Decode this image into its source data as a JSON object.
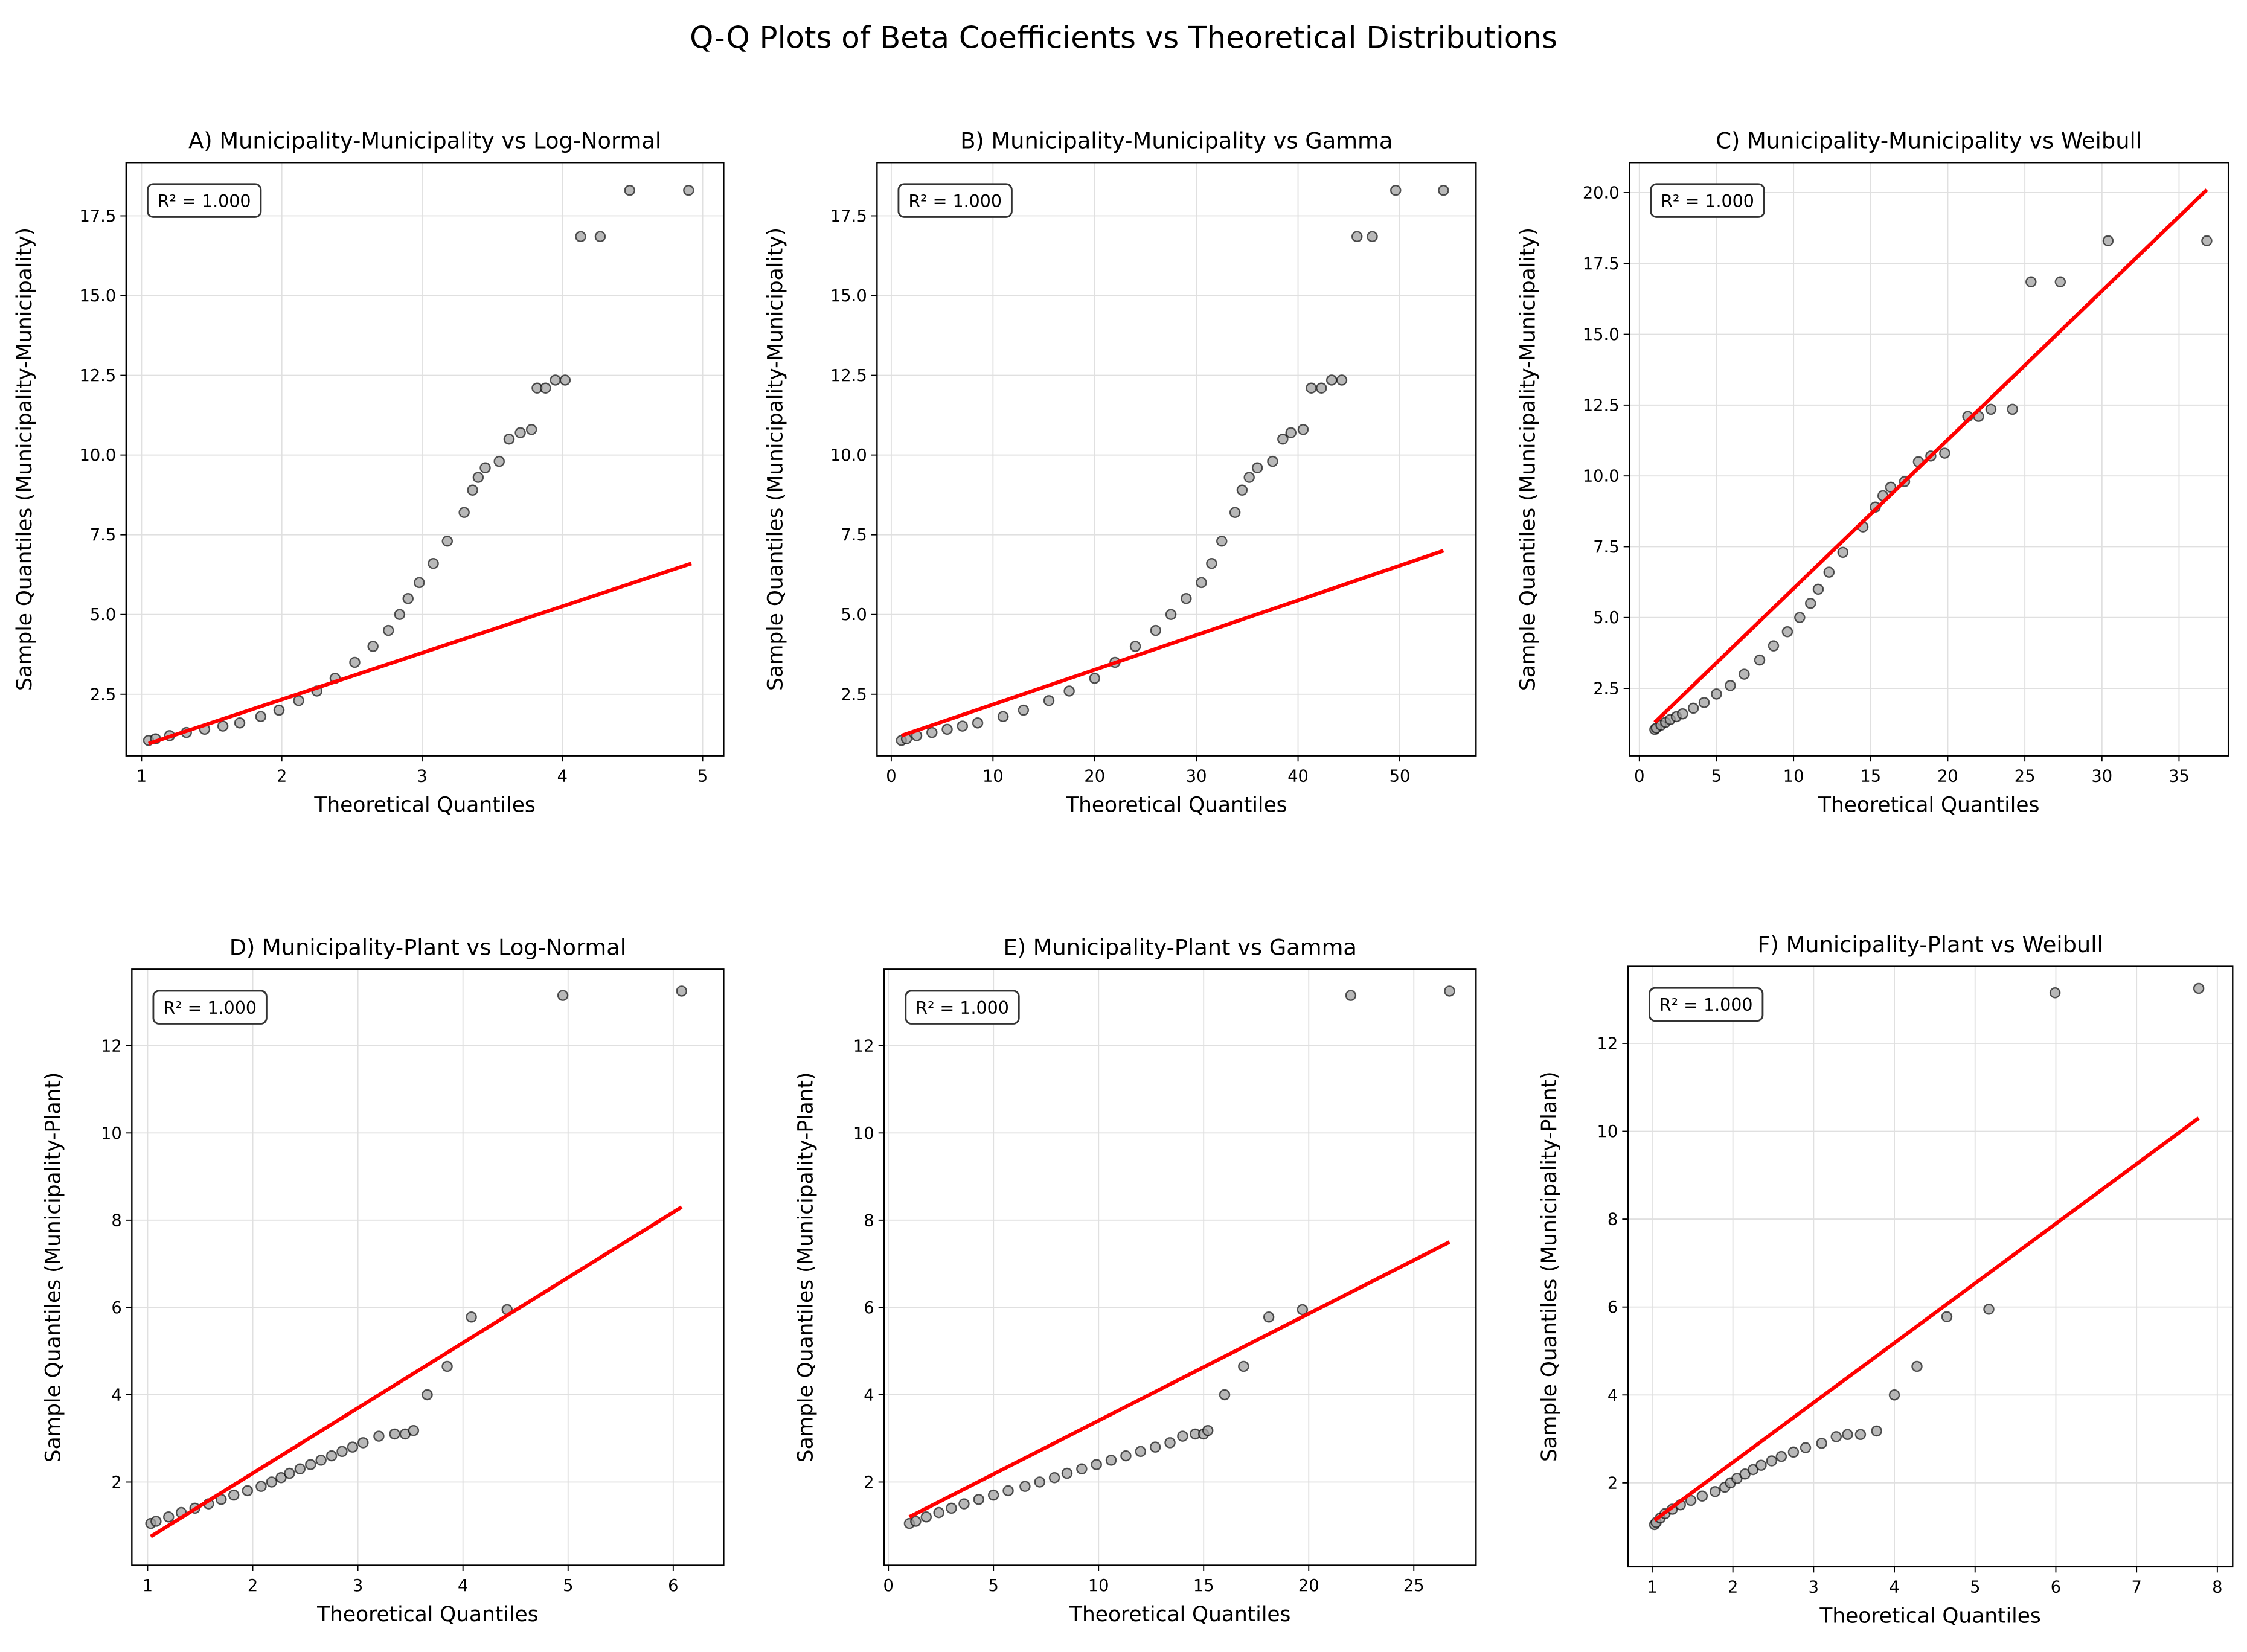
{
  "title": "Q-Q Plots of Beta Coefficients vs Theoretical Distributions",
  "colors": {
    "points_fill": "#a0a0a0",
    "points_edge": "#000000",
    "fit_line": "#ff0000",
    "grid": "#e0e0e0"
  },
  "chart_data": [
    {
      "type": "scatter",
      "title": "A) Municipality-Municipality vs Log-Normal",
      "xlabel": "Theoretical Quantiles",
      "ylabel": "Sample Quantiles (Municipality-Municipality)",
      "annotation": "R² = 1.000",
      "grid": true,
      "xlim": [
        0.89,
        5.15
      ],
      "ylim": [
        0.57,
        19.17
      ],
      "xticks": [
        1,
        2,
        3,
        4,
        5
      ],
      "yticks": [
        2.5,
        5.0,
        7.5,
        10.0,
        12.5,
        15.0,
        17.5
      ],
      "ytick_decimals": 1,
      "x": [
        1.05,
        1.1,
        1.2,
        1.32,
        1.45,
        1.58,
        1.7,
        1.85,
        1.98,
        2.12,
        2.25,
        2.38,
        2.52,
        2.65,
        2.76,
        2.84,
        2.9,
        2.98,
        3.08,
        3.18,
        3.3,
        3.36,
        3.4,
        3.45,
        3.55,
        3.62,
        3.7,
        3.78,
        3.82,
        3.88,
        3.95,
        4.02,
        4.13,
        4.27,
        4.48,
        4.9
      ],
      "y": [
        1.05,
        1.1,
        1.2,
        1.3,
        1.4,
        1.5,
        1.6,
        1.8,
        2.0,
        2.3,
        2.6,
        3.0,
        3.5,
        4.0,
        4.5,
        5.0,
        5.5,
        6.0,
        6.6,
        7.3,
        8.2,
        8.9,
        9.3,
        9.6,
        9.8,
        10.5,
        10.7,
        10.8,
        12.1,
        12.1,
        12.35,
        12.35,
        16.85,
        16.85,
        18.3,
        18.3
      ],
      "fit_line": [
        [
          1.05,
          0.95
        ],
        [
          4.92,
          6.6
        ]
      ]
    },
    {
      "type": "scatter",
      "title": "B) Municipality-Municipality vs Gamma",
      "xlabel": "Theoretical Quantiles",
      "ylabel": "Sample Quantiles (Municipality-Municipality)",
      "annotation": "R² = 1.000",
      "grid": true,
      "xlim": [
        -1.4,
        57.5
      ],
      "ylim": [
        0.57,
        19.17
      ],
      "xticks": [
        0,
        10,
        20,
        30,
        40,
        50
      ],
      "yticks": [
        2.5,
        5.0,
        7.5,
        10.0,
        12.5,
        15.0,
        17.5
      ],
      "ytick_decimals": 1,
      "x": [
        1,
        1.5,
        2.5,
        4,
        5.5,
        7,
        8.5,
        11,
        13,
        15.5,
        17.5,
        20,
        22,
        24,
        26,
        27.5,
        29,
        30.5,
        31.5,
        32.5,
        33.8,
        34.5,
        35.2,
        36,
        37.5,
        38.5,
        39.3,
        40.5,
        41.3,
        42.3,
        43.3,
        44.3,
        45.8,
        47.3,
        49.6,
        54.3
      ],
      "y": [
        1.05,
        1.1,
        1.2,
        1.3,
        1.4,
        1.5,
        1.6,
        1.8,
        2.0,
        2.3,
        2.6,
        3.0,
        3.5,
        4.0,
        4.5,
        5.0,
        5.5,
        6.0,
        6.6,
        7.3,
        8.2,
        8.9,
        9.3,
        9.6,
        9.8,
        10.5,
        10.7,
        10.8,
        12.1,
        12.1,
        12.35,
        12.35,
        16.85,
        16.85,
        18.3,
        18.3
      ],
      "fit_line": [
        [
          1,
          1.2
        ],
        [
          54.3,
          7.0
        ]
      ]
    },
    {
      "type": "scatter",
      "title": "C) Municipality-Municipality vs Weibull",
      "xlabel": "Theoretical Quantiles",
      "ylabel": "Sample Quantiles (Municipality-Municipality)",
      "annotation": "R² = 1.000",
      "grid": true,
      "xlim": [
        -0.65,
        38.2
      ],
      "ylim": [
        0.12,
        21.06
      ],
      "xticks": [
        0,
        5,
        10,
        15,
        20,
        25,
        30,
        35
      ],
      "yticks": [
        2.5,
        5.0,
        7.5,
        10.0,
        12.5,
        15.0,
        17.5,
        20.0
      ],
      "ytick_decimals": 1,
      "x": [
        1,
        1.1,
        1.4,
        1.7,
        2.0,
        2.4,
        2.8,
        3.5,
        4.2,
        5.0,
        5.9,
        6.8,
        7.8,
        8.7,
        9.6,
        10.4,
        11.1,
        11.6,
        12.3,
        13.2,
        14.5,
        15.3,
        15.8,
        16.3,
        17.2,
        18.1,
        18.9,
        19.8,
        21.3,
        22.0,
        22.8,
        24.2,
        25.4,
        27.3,
        30.4,
        36.8
      ],
      "y": [
        1.05,
        1.1,
        1.2,
        1.3,
        1.4,
        1.5,
        1.6,
        1.8,
        2.0,
        2.3,
        2.6,
        3.0,
        3.5,
        4.0,
        4.5,
        5.0,
        5.5,
        6.0,
        6.6,
        7.3,
        8.2,
        8.9,
        9.3,
        9.6,
        9.8,
        10.5,
        10.7,
        10.8,
        12.1,
        12.1,
        12.35,
        12.35,
        16.85,
        16.85,
        18.3,
        18.3
      ],
      "fit_line": [
        [
          1,
          1.3
        ],
        [
          36.8,
          20.1
        ]
      ]
    },
    {
      "type": "scatter",
      "title": "D) Municipality-Plant vs Log-Normal",
      "xlabel": "Theoretical Quantiles",
      "ylabel": "Sample Quantiles (Municipality-Plant)",
      "annotation": "R² = 1.000",
      "grid": true,
      "xlim": [
        0.85,
        6.48
      ],
      "ylim": [
        0.09,
        13.75
      ],
      "xticks": [
        1,
        2,
        3,
        4,
        5,
        6
      ],
      "yticks": [
        2,
        4,
        6,
        8,
        10,
        12
      ],
      "ytick_decimals": 0,
      "x": [
        1.03,
        1.08,
        1.2,
        1.32,
        1.45,
        1.58,
        1.7,
        1.82,
        1.95,
        2.08,
        2.18,
        2.27,
        2.35,
        2.45,
        2.55,
        2.65,
        2.75,
        2.85,
        2.95,
        3.05,
        3.2,
        3.35,
        3.45,
        3.53,
        3.66,
        3.85,
        4.08,
        4.42,
        4.95,
        6.08
      ],
      "y": [
        1.05,
        1.1,
        1.2,
        1.3,
        1.4,
        1.5,
        1.6,
        1.7,
        1.8,
        1.9,
        2.0,
        2.1,
        2.2,
        2.3,
        2.4,
        2.5,
        2.6,
        2.7,
        2.8,
        2.9,
        3.05,
        3.1,
        3.1,
        3.18,
        4.0,
        4.65,
        5.78,
        5.95,
        13.15,
        13.25
      ],
      "fit_line": [
        [
          1.03,
          0.75
        ],
        [
          6.08,
          8.3
        ]
      ]
    },
    {
      "type": "scatter",
      "title": "E) Municipality-Plant vs Gamma",
      "xlabel": "Theoretical Quantiles",
      "ylabel": "Sample Quantiles (Municipality-Plant)",
      "annotation": "R² = 1.000",
      "grid": true,
      "xlim": [
        -0.2,
        27.96
      ],
      "ylim": [
        0.09,
        13.75
      ],
      "xticks": [
        0,
        5,
        10,
        15,
        20,
        25
      ],
      "yticks": [
        2,
        4,
        6,
        8,
        10,
        12
      ],
      "ytick_decimals": 0,
      "x": [
        1,
        1.3,
        1.8,
        2.4,
        3.0,
        3.6,
        4.3,
        5.0,
        5.7,
        6.5,
        7.2,
        7.9,
        8.5,
        9.2,
        9.9,
        10.6,
        11.3,
        12.0,
        12.7,
        13.4,
        14.0,
        14.6,
        15.0,
        15.2,
        16.0,
        16.9,
        18.1,
        19.7,
        22.0,
        26.7
      ],
      "y": [
        1.05,
        1.1,
        1.2,
        1.3,
        1.4,
        1.5,
        1.6,
        1.7,
        1.8,
        1.9,
        2.0,
        2.1,
        2.2,
        2.3,
        2.4,
        2.5,
        2.6,
        2.7,
        2.8,
        2.9,
        3.05,
        3.1,
        3.1,
        3.18,
        4.0,
        4.65,
        5.78,
        5.95,
        13.15,
        13.25
      ],
      "fit_line": [
        [
          1,
          1.2
        ],
        [
          26.7,
          7.5
        ]
      ]
    },
    {
      "type": "scatter",
      "title": "F) Municipality-Plant vs Weibull",
      "xlabel": "Theoretical Quantiles",
      "ylabel": "Sample Quantiles (Municipality-Plant)",
      "annotation": "R² = 1.000",
      "grid": true,
      "xlim": [
        0.7,
        8.19
      ],
      "ylim": [
        0.09,
        13.75
      ],
      "xticks": [
        1,
        2,
        3,
        4,
        5,
        6,
        7,
        8
      ],
      "yticks": [
        2,
        4,
        6,
        8,
        10,
        12
      ],
      "ytick_decimals": 0,
      "x": [
        1.03,
        1.05,
        1.1,
        1.16,
        1.25,
        1.35,
        1.48,
        1.62,
        1.78,
        1.9,
        1.97,
        2.05,
        2.15,
        2.25,
        2.35,
        2.48,
        2.6,
        2.75,
        2.9,
        3.1,
        3.28,
        3.42,
        3.58,
        3.78,
        4.0,
        4.28,
        4.65,
        5.17,
        5.99,
        7.77
      ],
      "y": [
        1.05,
        1.1,
        1.2,
        1.3,
        1.4,
        1.5,
        1.6,
        1.7,
        1.8,
        1.9,
        2.0,
        2.1,
        2.2,
        2.3,
        2.4,
        2.5,
        2.6,
        2.7,
        2.8,
        2.9,
        3.05,
        3.1,
        3.1,
        3.18,
        4.0,
        4.65,
        5.78,
        5.95,
        13.15,
        13.25
      ],
      "fit_line": [
        [
          1.03,
          1.15
        ],
        [
          7.77,
          10.3
        ]
      ]
    }
  ]
}
